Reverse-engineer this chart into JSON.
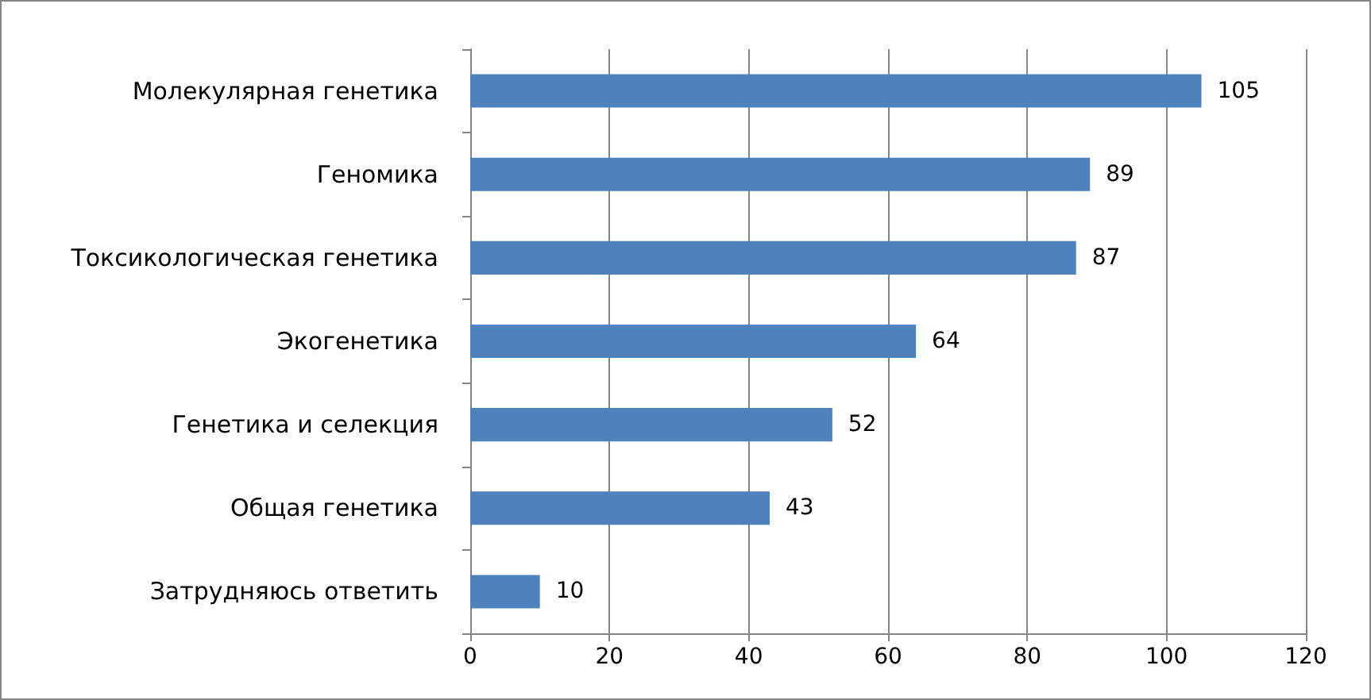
{
  "chart_data": {
    "type": "bar",
    "orientation": "horizontal",
    "categories": [
      "Молекулярная генетика",
      "Геномика",
      "Токсикологическая генетика",
      "Экогенетика",
      "Генетика и селекция",
      "Общая генетика",
      "Затрудняюсь ответить"
    ],
    "values": [
      105,
      89,
      87,
      64,
      52,
      43,
      10
    ],
    "color": "#4f81bd",
    "xlim": [
      0,
      120
    ],
    "xticks": [
      0,
      20,
      40,
      60,
      80,
      100,
      120
    ],
    "grid": "x",
    "data_labels": true
  }
}
